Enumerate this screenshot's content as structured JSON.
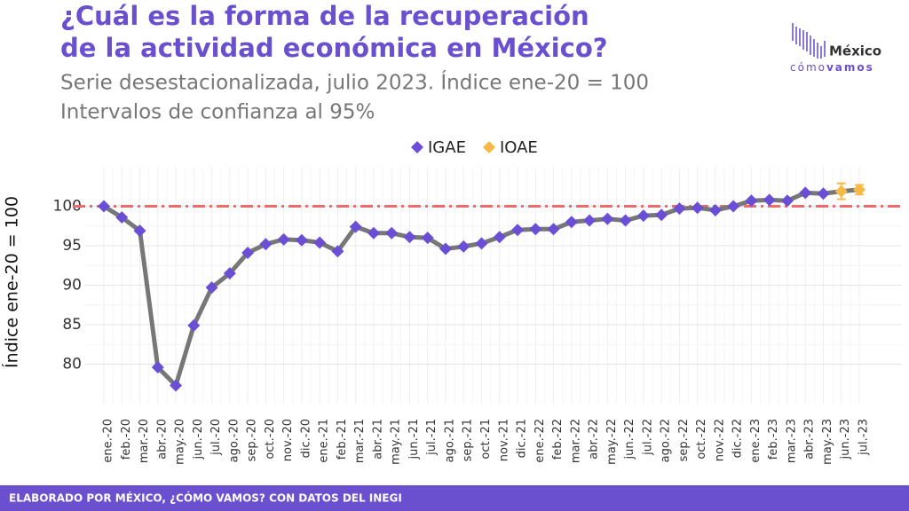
{
  "chart_data": {
    "type": "line",
    "title": "¿Cuál es la forma de la recuperación de la actividad económica en México?",
    "subtitle": [
      "Serie desestacionalizada, julio 2023. Índice ene-20 = 100",
      "Intervalos de confianza al 95%"
    ],
    "y_label": "Índice ene-20 = 100",
    "footer": "ELABORADO POR MÉXICO, ¿CÓMO VAMOS? CON DATOS DEL INEGI",
    "logo": {
      "name": "México",
      "sub1": "cómo",
      "sub2": "vamos"
    },
    "categories": [
      "ene.-20",
      "feb.-20",
      "mar.-20",
      "abr.-20",
      "may.-20",
      "jun.-20",
      "jul.-20",
      "ago.-20",
      "sep.-20",
      "oct.-20",
      "nov.-20",
      "dic.-20",
      "ene.-21",
      "feb.-21",
      "mar.-21",
      "abr.-21",
      "may.-21",
      "jun.-21",
      "jul.-21",
      "ago.-21",
      "sep.-21",
      "oct.-21",
      "nov.-21",
      "dic.-21",
      "ene.-22",
      "feb.-22",
      "mar.-22",
      "abr.-22",
      "may.-22",
      "jun.-22",
      "jul.-22",
      "ago.-22",
      "sep.-22",
      "oct.-22",
      "nov.-22",
      "dic.-22",
      "ene.-23",
      "feb.-23",
      "mar.-23",
      "abr.-23",
      "may.-23",
      "jun.-23",
      "jul.-23"
    ],
    "series": [
      {
        "name": "IGAE",
        "color": "#6a4fd6",
        "values": [
          100,
          98.6,
          96.9,
          79.6,
          77.3,
          84.9,
          89.7,
          91.5,
          94.1,
          95.2,
          95.8,
          95.7,
          95.4,
          94.3,
          97.4,
          96.6,
          96.6,
          96.1,
          96.0,
          94.6,
          94.9,
          95.3,
          96.1,
          97.0,
          97.1,
          97.1,
          98.0,
          98.2,
          98.4,
          98.2,
          98.8,
          98.9,
          99.7,
          99.8,
          99.5,
          100.0,
          100.7,
          100.8,
          100.7,
          101.7,
          101.6,
          null,
          null
        ]
      },
      {
        "name": "IOAE",
        "color": "#f7b945",
        "values": [
          null,
          null,
          null,
          null,
          null,
          null,
          null,
          null,
          null,
          null,
          null,
          null,
          null,
          null,
          null,
          null,
          null,
          null,
          null,
          null,
          null,
          null,
          null,
          null,
          null,
          null,
          null,
          null,
          null,
          null,
          null,
          null,
          null,
          null,
          null,
          null,
          null,
          null,
          null,
          null,
          null,
          101.9,
          102.1
        ],
        "errors": [
          null,
          null,
          null,
          null,
          null,
          null,
          null,
          null,
          null,
          null,
          null,
          null,
          null,
          null,
          null,
          null,
          null,
          null,
          null,
          null,
          null,
          null,
          null,
          null,
          null,
          null,
          null,
          null,
          null,
          null,
          null,
          null,
          null,
          null,
          null,
          null,
          null,
          null,
          null,
          null,
          null,
          1.0,
          0.6
        ]
      }
    ],
    "line_color": "#777777",
    "reference_line": {
      "value": 100,
      "color": "#ee6b6b"
    },
    "ylim": [
      75,
      105
    ],
    "yticks": [
      80,
      85,
      90,
      95,
      100
    ],
    "grid": true,
    "legend": "top"
  }
}
